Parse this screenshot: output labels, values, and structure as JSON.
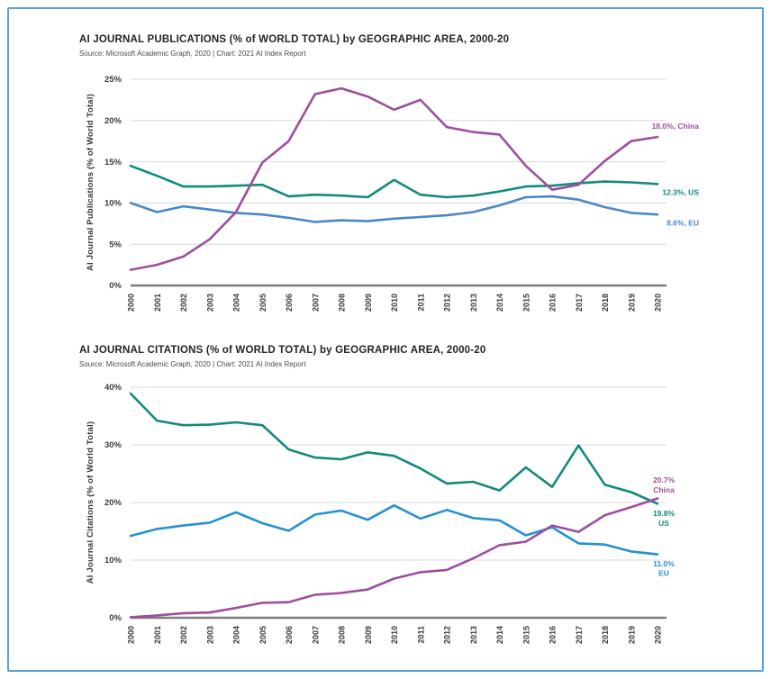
{
  "page": {
    "background": "#ffffff",
    "border_color": "#56a4dd"
  },
  "palette": {
    "china": "#9c4f9d",
    "us": "#13897f",
    "eu_publications": "#4a87c9",
    "eu_citations": "#2492d2",
    "gridline": "#d8d8d8",
    "axis_line": "#7d7d7d",
    "tick_text": "#3c3c3e",
    "title_text": "#242424",
    "source_text": "#4a4a4a"
  },
  "chart_data": [
    {
      "type": "line",
      "title": "AI JOURNAL PUBLICATIONS (% of WORLD TOTAL) by GEOGRAPHIC AREA, 2000-20",
      "source": "Source: Microsoft Academic Graph, 2020 | Chart: 2021 AI Index Report",
      "ylabel": "AI Journal Publications (% of World Total)",
      "xlabel": "",
      "ylim": [
        0,
        25
      ],
      "yticks": [
        "0%",
        "5%",
        "10%",
        "15%",
        "20%",
        "25%"
      ],
      "grid": true,
      "legend_position": "end-of-line labels",
      "x": [
        "2000",
        "2001",
        "2002",
        "2003",
        "2004",
        "2005",
        "2006",
        "2007",
        "2008",
        "2009",
        "2010",
        "2011",
        "2012",
        "2013",
        "2014",
        "2015",
        "2016",
        "2017",
        "2018",
        "2019",
        "2020"
      ],
      "series": [
        {
          "name": "US",
          "color": "#13897f",
          "end_label_lines": [
            "12.3%, US"
          ],
          "end_label_values": [
            11.3
          ],
          "values": [
            14.5,
            13.3,
            12.0,
            12.0,
            12.1,
            12.2,
            10.8,
            11.0,
            10.9,
            10.7,
            12.8,
            11.0,
            10.7,
            10.9,
            11.4,
            12.0,
            12.1,
            12.4,
            12.6,
            12.5,
            12.3
          ]
        },
        {
          "name": "EU",
          "color": "#4a87c9",
          "end_label_lines": [
            "8.6%, EU"
          ],
          "end_label_values": [
            7.6
          ],
          "values": [
            10.0,
            8.9,
            9.6,
            9.2,
            8.8,
            8.6,
            8.2,
            7.7,
            7.9,
            7.8,
            8.1,
            8.3,
            8.5,
            8.9,
            9.7,
            10.7,
            10.8,
            10.4,
            9.5,
            8.8,
            8.6
          ]
        },
        {
          "name": "China",
          "color": "#9c4f9d",
          "end_label_lines": [
            "18.0%, China"
          ],
          "end_label_values": [
            19.3
          ],
          "values": [
            1.9,
            2.5,
            3.5,
            5.6,
            8.9,
            14.9,
            17.5,
            23.2,
            23.9,
            22.9,
            21.3,
            22.5,
            19.2,
            18.6,
            18.3,
            14.5,
            11.6,
            12.2,
            15.1,
            17.5,
            18.0
          ]
        }
      ]
    },
    {
      "type": "line",
      "title": "AI JOURNAL CITATIONS (% of WORLD TOTAL) by GEOGRAPHIC AREA, 2000-20",
      "source": "Source: Microsoft Academic Graph, 2020 | Chart: 2021 AI Index Report",
      "ylabel": "AI Journal Citations (% of World Total)",
      "xlabel": "",
      "ylim": [
        0,
        40
      ],
      "yticks": [
        "0%",
        "10%",
        "20%",
        "30%",
        "40%"
      ],
      "grid": true,
      "legend_position": "end-of-line labels",
      "x": [
        "2000",
        "2001",
        "2002",
        "2003",
        "2004",
        "2005",
        "2006",
        "2007",
        "2008",
        "2009",
        "2010",
        "2011",
        "2012",
        "2013",
        "2014",
        "2015",
        "2016",
        "2017",
        "2018",
        "2019",
        "2020"
      ],
      "series": [
        {
          "name": "US",
          "color": "#13897f",
          "end_label_lines": [
            "19.8%",
            "US"
          ],
          "end_label_values": [
            18.1,
            16.4
          ],
          "values": [
            38.9,
            34.2,
            33.4,
            33.5,
            33.9,
            33.4,
            29.2,
            27.8,
            27.5,
            28.7,
            28.1,
            25.9,
            23.3,
            23.6,
            22.1,
            26.1,
            22.7,
            29.9,
            23.1,
            21.8,
            19.8
          ]
        },
        {
          "name": "EU",
          "color": "#2492d2",
          "end_label_lines": [
            "11.0%",
            "EU"
          ],
          "end_label_values": [
            9.4,
            7.7
          ],
          "values": [
            14.2,
            15.4,
            16.0,
            16.5,
            18.3,
            16.4,
            15.1,
            17.9,
            18.6,
            17.0,
            19.5,
            17.2,
            18.7,
            17.3,
            16.9,
            14.3,
            15.7,
            12.9,
            12.7,
            11.5,
            11.0
          ]
        },
        {
          "name": "China",
          "color": "#9c4f9d",
          "end_label_lines": [
            "20.7%",
            "China"
          ],
          "end_label_values": [
            23.9,
            22.2
          ],
          "values": [
            0.1,
            0.4,
            0.8,
            0.9,
            1.7,
            2.6,
            2.7,
            4.0,
            4.3,
            4.9,
            6.8,
            7.9,
            8.3,
            10.3,
            12.6,
            13.2,
            16.0,
            14.9,
            17.8,
            19.2,
            20.7
          ]
        }
      ]
    }
  ]
}
